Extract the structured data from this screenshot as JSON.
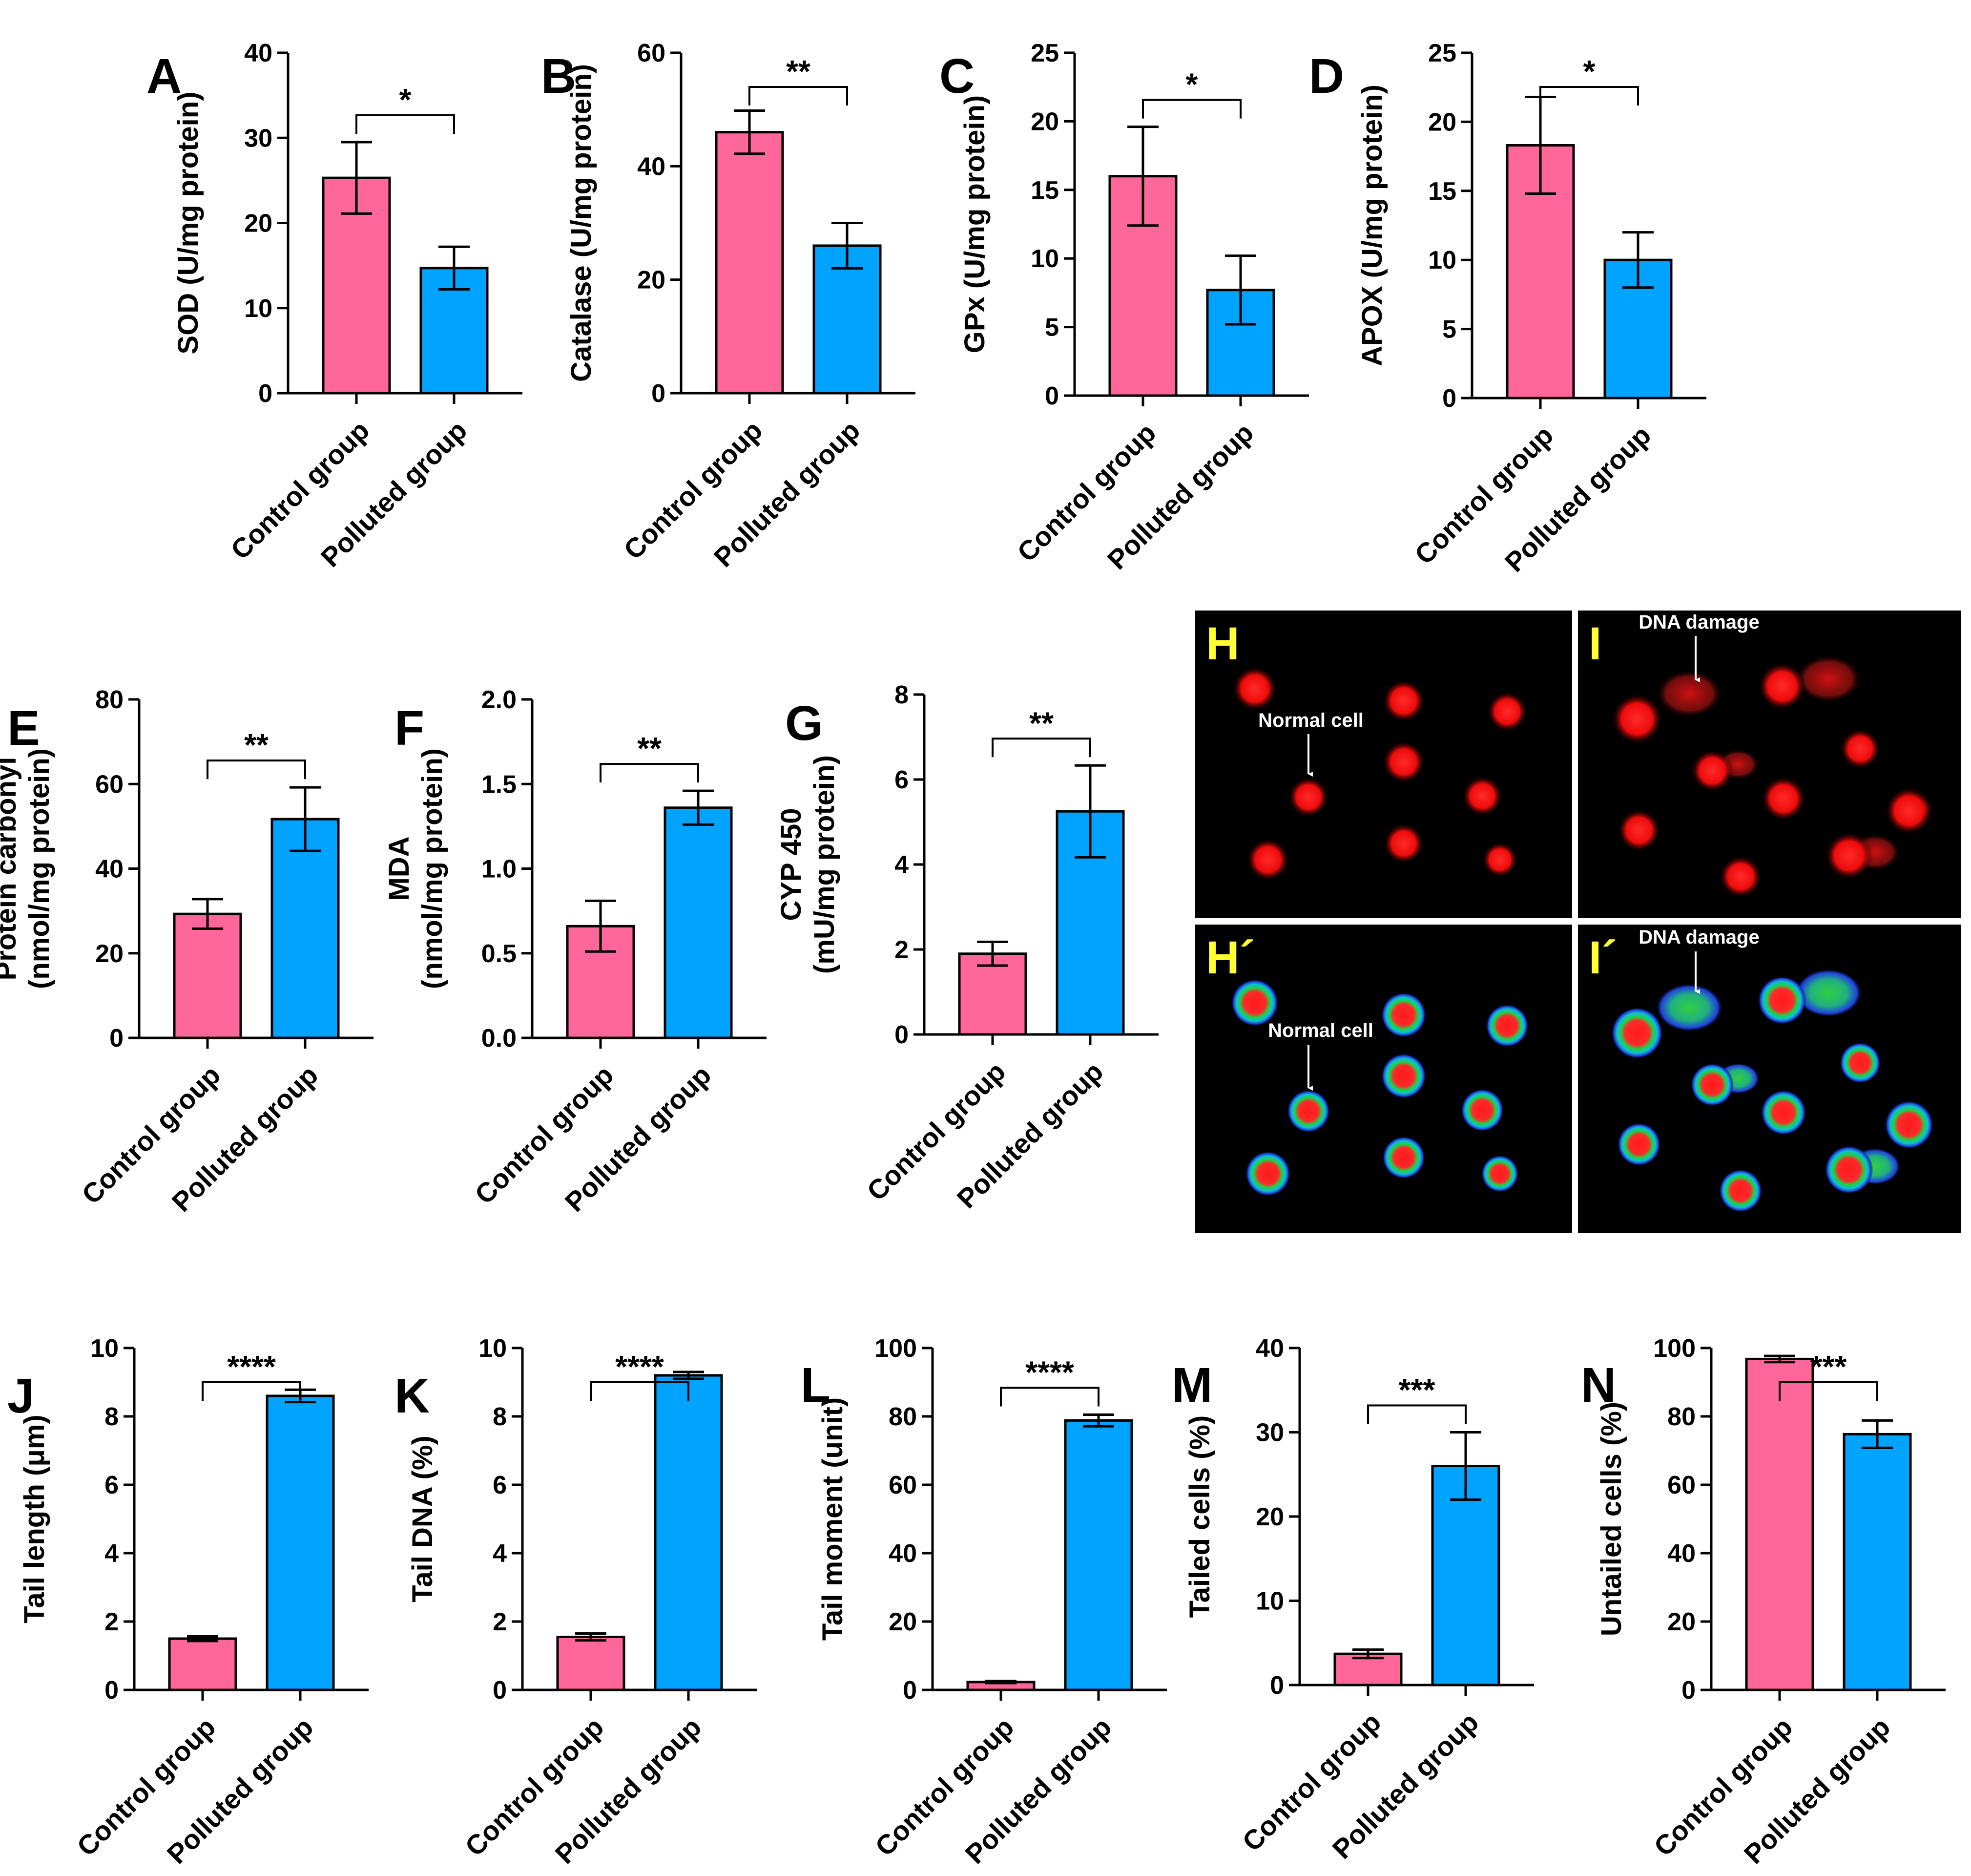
{
  "colors": {
    "control": "#ff6699",
    "polluted": "#00a3ff",
    "axis": "#000000",
    "image_background": "#000000",
    "image_letter": "#ffff33"
  },
  "chart_data": [
    {
      "panel": "A",
      "type": "bar",
      "categories": [
        "Control group",
        "Polluted group"
      ],
      "values": [
        25.3,
        14.7
      ],
      "errors": [
        4.2,
        2.5
      ],
      "ylabel": "SOD (U/mg protein)",
      "ylim": [
        0,
        40
      ],
      "yticks": [
        0,
        10,
        20,
        30,
        40
      ],
      "significance": "*"
    },
    {
      "panel": "B",
      "type": "bar",
      "categories": [
        "Control group",
        "Polluted group"
      ],
      "values": [
        46.0,
        26.0
      ],
      "errors": [
        3.8,
        4.0
      ],
      "ylabel": "Catalase (U/mg protein)",
      "ylim": [
        0,
        60
      ],
      "yticks": [
        0,
        20,
        40,
        60
      ],
      "significance": "**"
    },
    {
      "panel": "C",
      "type": "bar",
      "categories": [
        "Control group",
        "Polluted group"
      ],
      "values": [
        16.0,
        7.7
      ],
      "errors": [
        3.6,
        2.5
      ],
      "ylabel": "GPx (U/mg protein)",
      "ylim": [
        0,
        25
      ],
      "yticks": [
        0,
        5,
        10,
        15,
        20,
        25
      ],
      "significance": "*"
    },
    {
      "panel": "D",
      "type": "bar",
      "categories": [
        "Control group",
        "Polluted group"
      ],
      "values": [
        18.3,
        10.0
      ],
      "errors": [
        3.5,
        2.0
      ],
      "ylabel": "APOX (U/mg protein)",
      "ylim": [
        0,
        25
      ],
      "yticks": [
        0,
        5,
        10,
        15,
        20,
        25
      ],
      "significance": "*"
    },
    {
      "panel": "E",
      "type": "bar",
      "categories": [
        "Control group",
        "Polluted group"
      ],
      "values": [
        29.3,
        51.7
      ],
      "errors": [
        3.5,
        7.5
      ],
      "ylabel": [
        "Protein carbonyl",
        "(nmol/mg protein)"
      ],
      "ylim": [
        0,
        80
      ],
      "yticks": [
        0,
        20,
        40,
        60,
        80
      ],
      "significance": "**"
    },
    {
      "panel": "F",
      "type": "bar",
      "categories": [
        "Control group",
        "Polluted group"
      ],
      "values": [
        0.66,
        1.36
      ],
      "errors": [
        0.15,
        0.1
      ],
      "ylabel": [
        "MDA",
        "(nmol/mg protein)"
      ],
      "ylim": [
        0,
        2.0
      ],
      "yticks": [
        "0.0",
        "0.5",
        "1.0",
        "1.5",
        "2.0"
      ],
      "significance": "**"
    },
    {
      "panel": "G",
      "type": "bar",
      "categories": [
        "Control group",
        "Polluted group"
      ],
      "values": [
        1.9,
        5.25
      ],
      "errors": [
        0.28,
        1.08
      ],
      "ylabel": [
        "CYP 450",
        "(mU/mg protein)"
      ],
      "ylim": [
        0,
        8
      ],
      "yticks": [
        0,
        2,
        4,
        6,
        8
      ],
      "significance": "**"
    },
    {
      "panel": "J",
      "type": "bar",
      "categories": [
        "Control group",
        "Polluted group"
      ],
      "values": [
        1.5,
        8.6
      ],
      "errors": [
        0.07,
        0.18
      ],
      "ylabel": "Tail length (μm)",
      "ylim": [
        0,
        10
      ],
      "yticks": [
        0,
        2,
        4,
        6,
        8,
        10
      ],
      "significance": "****"
    },
    {
      "panel": "K",
      "type": "bar",
      "categories": [
        "Control group",
        "Polluted group"
      ],
      "values": [
        1.55,
        9.2
      ],
      "errors": [
        0.1,
        0.1
      ],
      "ylabel": "Tail DNA (%)",
      "ylim": [
        0,
        10
      ],
      "yticks": [
        0,
        2,
        4,
        6,
        8,
        10
      ],
      "significance": "****"
    },
    {
      "panel": "L",
      "type": "bar",
      "categories": [
        "Control group",
        "Polluted group"
      ],
      "values": [
        2.3,
        78.8
      ],
      "errors": [
        0.3,
        1.7
      ],
      "ylabel": "Tail moment (unit)",
      "ylim": [
        0,
        100
      ],
      "yticks": [
        0,
        20,
        40,
        60,
        80,
        100
      ],
      "significance": "****"
    },
    {
      "panel": "M",
      "type": "bar",
      "categories": [
        "Control group",
        "Polluted group"
      ],
      "values": [
        3.7,
        26.0
      ],
      "errors": [
        0.5,
        4.0
      ],
      "ylabel": "Tailed cells (%)",
      "ylim": [
        0,
        40
      ],
      "yticks": [
        0,
        10,
        20,
        30,
        40
      ],
      "significance": "***"
    },
    {
      "panel": "N",
      "type": "bar",
      "categories": [
        "Control group",
        "Polluted group"
      ],
      "values": [
        96.8,
        74.8
      ],
      "errors": [
        0.9,
        4.0
      ],
      "ylabel": "Untailed cells (%)",
      "ylim": [
        0,
        100
      ],
      "yticks": [
        0,
        20,
        40,
        60,
        80,
        100
      ],
      "significance": "***"
    }
  ],
  "micrographs": [
    {
      "label": "H",
      "annotation": "Normal cell",
      "style": "red"
    },
    {
      "label": "I",
      "annotation": "DNA damage",
      "style": "red"
    },
    {
      "label": "H´",
      "annotation": "Normal cell",
      "style": "heatmap"
    },
    {
      "label": "I´",
      "annotation": "DNA damage",
      "style": "heatmap"
    }
  ]
}
